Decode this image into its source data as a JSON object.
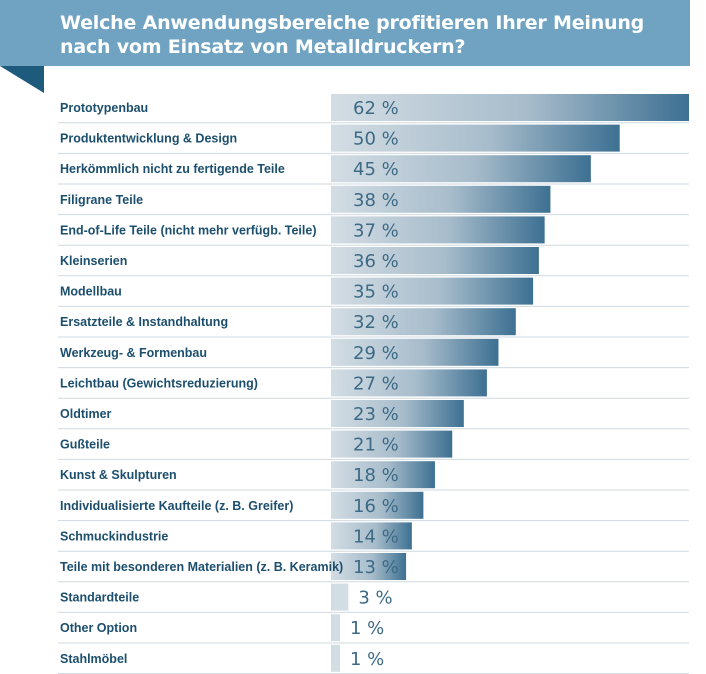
{
  "header": {
    "title_line1": "Welche Anwendungsbereiche profitieren Ihrer Meinung",
    "title_line2": "nach vom Einsatz von Metalldruckern?"
  },
  "colors": {
    "header_bg": "#6fa3c1",
    "corner": "#1e5a7c",
    "label_text": "#1c4f6e",
    "bar_start": "#d3dde4",
    "bar_end": "#3d7092",
    "value_text": "#3d6a85",
    "divider": "#cfd9e0"
  },
  "chart_data": {
    "type": "bar",
    "orientation": "horizontal",
    "unit": "%",
    "categories": [
      "Prototypenbau",
      "Produktentwicklung & Design",
      "Herkömmlich nicht zu fertigende Teile",
      "Filigrane Teile",
      "End-of-Life Teile (nicht mehr verfügb. Teile)",
      "Kleinserien",
      "Modellbau",
      "Ersatzteile & Instandhaltung",
      "Werkzeug- & Formenbau",
      "Leichtbau (Gewichtsreduzierung)",
      "Oldtimer",
      "Gußteile",
      "Kunst & Skulpturen",
      "Individualisierte Kaufteile (z. B. Greifer)",
      "Schmuckindustrie",
      "Teile mit besonderen Materialien (z. B. Keramik)",
      "Standardteile",
      "Other Option",
      "Stahlmöbel"
    ],
    "values": [
      62,
      50,
      45,
      38,
      37,
      36,
      35,
      32,
      29,
      27,
      23,
      21,
      18,
      16,
      14,
      13,
      3,
      1,
      1
    ],
    "value_labels": [
      "62 %",
      "50 %",
      "45 %",
      "38 %",
      "37 %",
      "36 %",
      "35 %",
      "32 %",
      "29 %",
      "27 %",
      "23 %",
      "21 %",
      "18 %",
      "16 %",
      "14 %",
      "13 %",
      "3 %",
      "1 %",
      "1 %"
    ],
    "xlim": [
      0,
      62
    ],
    "grid": false,
    "legend": "none"
  }
}
